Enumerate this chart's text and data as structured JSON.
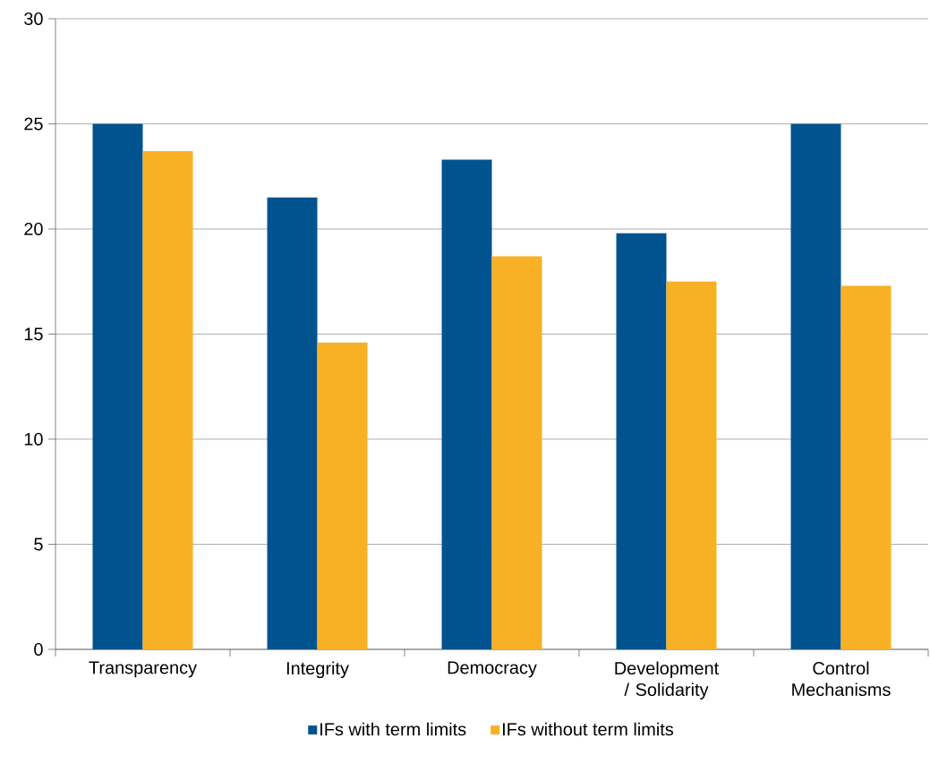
{
  "chart_data": {
    "type": "bar",
    "categories": [
      "Transparency",
      "Integrity",
      "Democracy",
      "Development / Solidarity",
      "Control Mechanisms"
    ],
    "series": [
      {
        "name": "IFs with term limits",
        "color": "#00538f",
        "values": [
          25,
          21.5,
          23.3,
          19.8,
          25
        ]
      },
      {
        "name": "IFs without term limits",
        "color": "#f8b125",
        "values": [
          23.7,
          14.6,
          18.7,
          17.5,
          17.3
        ]
      }
    ],
    "ylim": [
      0,
      30
    ],
    "yticks": [
      0,
      5,
      10,
      15,
      20,
      25,
      30
    ],
    "grid": "y",
    "legend": "bottom"
  }
}
